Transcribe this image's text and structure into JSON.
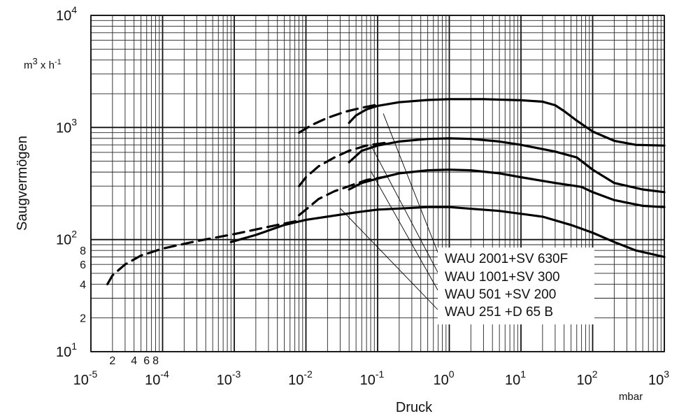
{
  "chart_data": {
    "type": "line",
    "xlabel": "Druck",
    "ylabel": "Saugvermögen",
    "x_unit": "mbar",
    "y_unit": {
      "base": "m",
      "exp": "3",
      "mid": " x h",
      "exp2": "-1"
    },
    "x_scale": "log",
    "y_scale": "log",
    "xlim": [
      1e-05,
      1000
    ],
    "ylim": [
      10,
      10000
    ],
    "grid": true,
    "x_major_ticks": [
      {
        "value": 1e-05,
        "base": "10",
        "exp": "-5"
      },
      {
        "value": 0.0001,
        "base": "10",
        "exp": "-4"
      },
      {
        "value": 0.001,
        "base": "10",
        "exp": "-3"
      },
      {
        "value": 0.01,
        "base": "10",
        "exp": "-2"
      },
      {
        "value": 0.1,
        "base": "10",
        "exp": "-1"
      },
      {
        "value": 1,
        "base": "10",
        "exp": "0"
      },
      {
        "value": 10,
        "base": "10",
        "exp": "1"
      },
      {
        "value": 100,
        "base": "10",
        "exp": "2"
      },
      {
        "value": 1000,
        "base": "10",
        "exp": "3"
      }
    ],
    "x_minor_labels": [
      {
        "value": 2e-05,
        "label": "2"
      },
      {
        "value": 4e-05,
        "label": "4"
      },
      {
        "value": 6e-05,
        "label": "6"
      },
      {
        "value": 8e-05,
        "label": "8"
      }
    ],
    "y_major_ticks": [
      {
        "value": 10,
        "base": "10",
        "exp": "1"
      },
      {
        "value": 100,
        "base": "10",
        "exp": "2"
      },
      {
        "value": 1000,
        "base": "10",
        "exp": "3"
      },
      {
        "value": 10000,
        "base": "10",
        "exp": "4"
      }
    ],
    "y_minor_labels": [
      {
        "value": 20,
        "label": "2"
      },
      {
        "value": 40,
        "label": "4"
      },
      {
        "value": 60,
        "label": "6"
      },
      {
        "value": 80,
        "label": "8"
      }
    ],
    "series": [
      {
        "name": "WAU 2001+SV 630F",
        "dashed": [
          [
            0.008,
            900
          ],
          [
            0.012,
            1050
          ],
          [
            0.02,
            1220
          ],
          [
            0.035,
            1380
          ],
          [
            0.06,
            1500
          ],
          [
            0.1,
            1600
          ]
        ],
        "solid": [
          [
            0.04,
            1100
          ],
          [
            0.05,
            1280
          ],
          [
            0.07,
            1450
          ],
          [
            0.1,
            1560
          ],
          [
            0.2,
            1680
          ],
          [
            0.5,
            1760
          ],
          [
            1,
            1790
          ],
          [
            3,
            1790
          ],
          [
            10,
            1750
          ],
          [
            20,
            1700
          ],
          [
            30,
            1580
          ],
          [
            40,
            1400
          ],
          [
            60,
            1150
          ],
          [
            100,
            920
          ],
          [
            200,
            760
          ],
          [
            400,
            700
          ],
          [
            1000,
            690
          ]
        ]
      },
      {
        "name": "WAU 1001+SV 300",
        "dashed": [
          [
            0.008,
            300
          ],
          [
            0.01,
            360
          ],
          [
            0.015,
            450
          ],
          [
            0.025,
            540
          ],
          [
            0.04,
            620
          ],
          [
            0.07,
            690
          ],
          [
            0.15,
            740
          ]
        ],
        "solid": [
          [
            0.04,
            490
          ],
          [
            0.06,
            620
          ],
          [
            0.1,
            690
          ],
          [
            0.2,
            750
          ],
          [
            0.5,
            790
          ],
          [
            1,
            800
          ],
          [
            2,
            790
          ],
          [
            5,
            750
          ],
          [
            10,
            700
          ],
          [
            30,
            610
          ],
          [
            60,
            540
          ],
          [
            100,
            420
          ],
          [
            200,
            320
          ],
          [
            500,
            280
          ],
          [
            1000,
            265
          ]
        ]
      },
      {
        "name": "WAU 501 +SV 200",
        "dashed": [
          [
            0.008,
            165
          ],
          [
            0.01,
            185
          ],
          [
            0.015,
            230
          ],
          [
            0.025,
            270
          ],
          [
            0.04,
            300
          ],
          [
            0.07,
            340
          ],
          [
            0.15,
            370
          ]
        ],
        "solid": [
          [
            0.04,
            280
          ],
          [
            0.06,
            320
          ],
          [
            0.1,
            350
          ],
          [
            0.2,
            390
          ],
          [
            0.5,
            415
          ],
          [
            1,
            420
          ],
          [
            2,
            415
          ],
          [
            5,
            390
          ],
          [
            10,
            360
          ],
          [
            30,
            320
          ],
          [
            70,
            295
          ],
          [
            100,
            265
          ],
          [
            200,
            225
          ],
          [
            500,
            200
          ],
          [
            1000,
            195
          ]
        ]
      },
      {
        "name": "WAU 251 +D 65 B",
        "dashed": [
          [
            1.7e-05,
            40
          ],
          [
            2e-05,
            48
          ],
          [
            3e-05,
            60
          ],
          [
            5e-05,
            72
          ],
          [
            0.0001,
            83
          ],
          [
            0.0003,
            97
          ],
          [
            0.001,
            112
          ],
          [
            0.003,
            130
          ],
          [
            0.008,
            148
          ]
        ],
        "solid": [
          [
            0.0009,
            95
          ],
          [
            0.002,
            110
          ],
          [
            0.005,
            135
          ],
          [
            0.01,
            150
          ],
          [
            0.05,
            175
          ],
          [
            0.1,
            185
          ],
          [
            0.5,
            195
          ],
          [
            1,
            195
          ],
          [
            5,
            180
          ],
          [
            20,
            160
          ],
          [
            50,
            135
          ],
          [
            100,
            115
          ],
          [
            200,
            95
          ],
          [
            400,
            80
          ],
          [
            1000,
            70
          ]
        ]
      }
    ],
    "legend_anchors": [
      {
        "from": [
          0.12,
          1330
        ],
        "to": [
          200,
          72
        ]
      },
      {
        "from": [
          0.08,
          700
        ],
        "to": [
          200,
          52
        ]
      },
      {
        "from": [
          0.08,
          410
        ],
        "to": [
          200,
          36
        ]
      },
      {
        "from": [
          0.03,
          190
        ],
        "to": [
          200,
          27
        ]
      }
    ]
  }
}
